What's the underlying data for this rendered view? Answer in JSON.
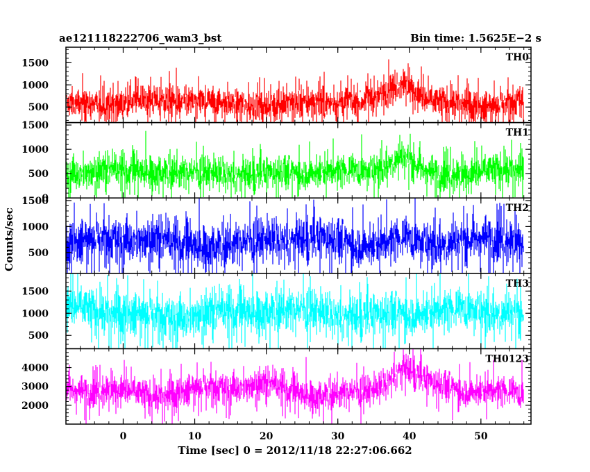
{
  "header": {
    "left_title": "ae121118222706_wam3_bst",
    "right_title": "Bin time: 1.5625E−2 s"
  },
  "chart_data": {
    "type": "line",
    "xlabel": "Time [sec] 0 = 2012/11/18 22:27:06.662",
    "ylabel": "Counts/sec",
    "xlim": [
      -8,
      57
    ],
    "x_ticks": [
      0,
      10,
      20,
      30,
      40,
      50
    ],
    "x_tick_labels": [
      "0",
      "10",
      "20",
      "30",
      "40",
      "50"
    ],
    "data_x_range": [
      -7.9,
      56.0
    ],
    "burst_peak_time": 39,
    "panels": [
      {
        "name": "TH0",
        "color": "#ff0000",
        "ylim": [
          150,
          1850
        ],
        "y_ticks": [
          500,
          1000,
          1500
        ],
        "y_tick_labels": [
          "500",
          "1000",
          "1500"
        ],
        "mean": 600,
        "noise": 280,
        "burst_extra": 450
      },
      {
        "name": "TH1",
        "color": "#00ff00",
        "ylim": [
          0,
          1550
        ],
        "y_ticks": [
          0,
          500,
          1000,
          1500
        ],
        "y_tick_labels": [
          "0",
          "500",
          "1000",
          "1500"
        ],
        "mean": 520,
        "noise": 270,
        "burst_extra": 350
      },
      {
        "name": "TH2",
        "color": "#0000ff",
        "ylim": [
          100,
          1550
        ],
        "y_ticks": [
          500,
          1000,
          1500
        ],
        "y_tick_labels": [
          "500",
          "1000",
          "1500"
        ],
        "mean": 700,
        "noise": 330,
        "burst_extra": 120
      },
      {
        "name": "TH3",
        "color": "#00ffff",
        "ylim": [
          200,
          1900
        ],
        "y_ticks": [
          500,
          1000,
          1500
        ],
        "y_tick_labels": [
          "500",
          "1000",
          "1500"
        ],
        "mean": 1000,
        "noise": 380,
        "burst_extra": 80
      },
      {
        "name": "TH0123",
        "color": "#ff00ff",
        "ylim": [
          1000,
          5000
        ],
        "y_ticks": [
          2000,
          3000,
          4000
        ],
        "y_tick_labels": [
          "2000",
          "3000",
          "4000"
        ],
        "mean": 2800,
        "noise": 650,
        "burst_extra": 1050
      }
    ]
  }
}
